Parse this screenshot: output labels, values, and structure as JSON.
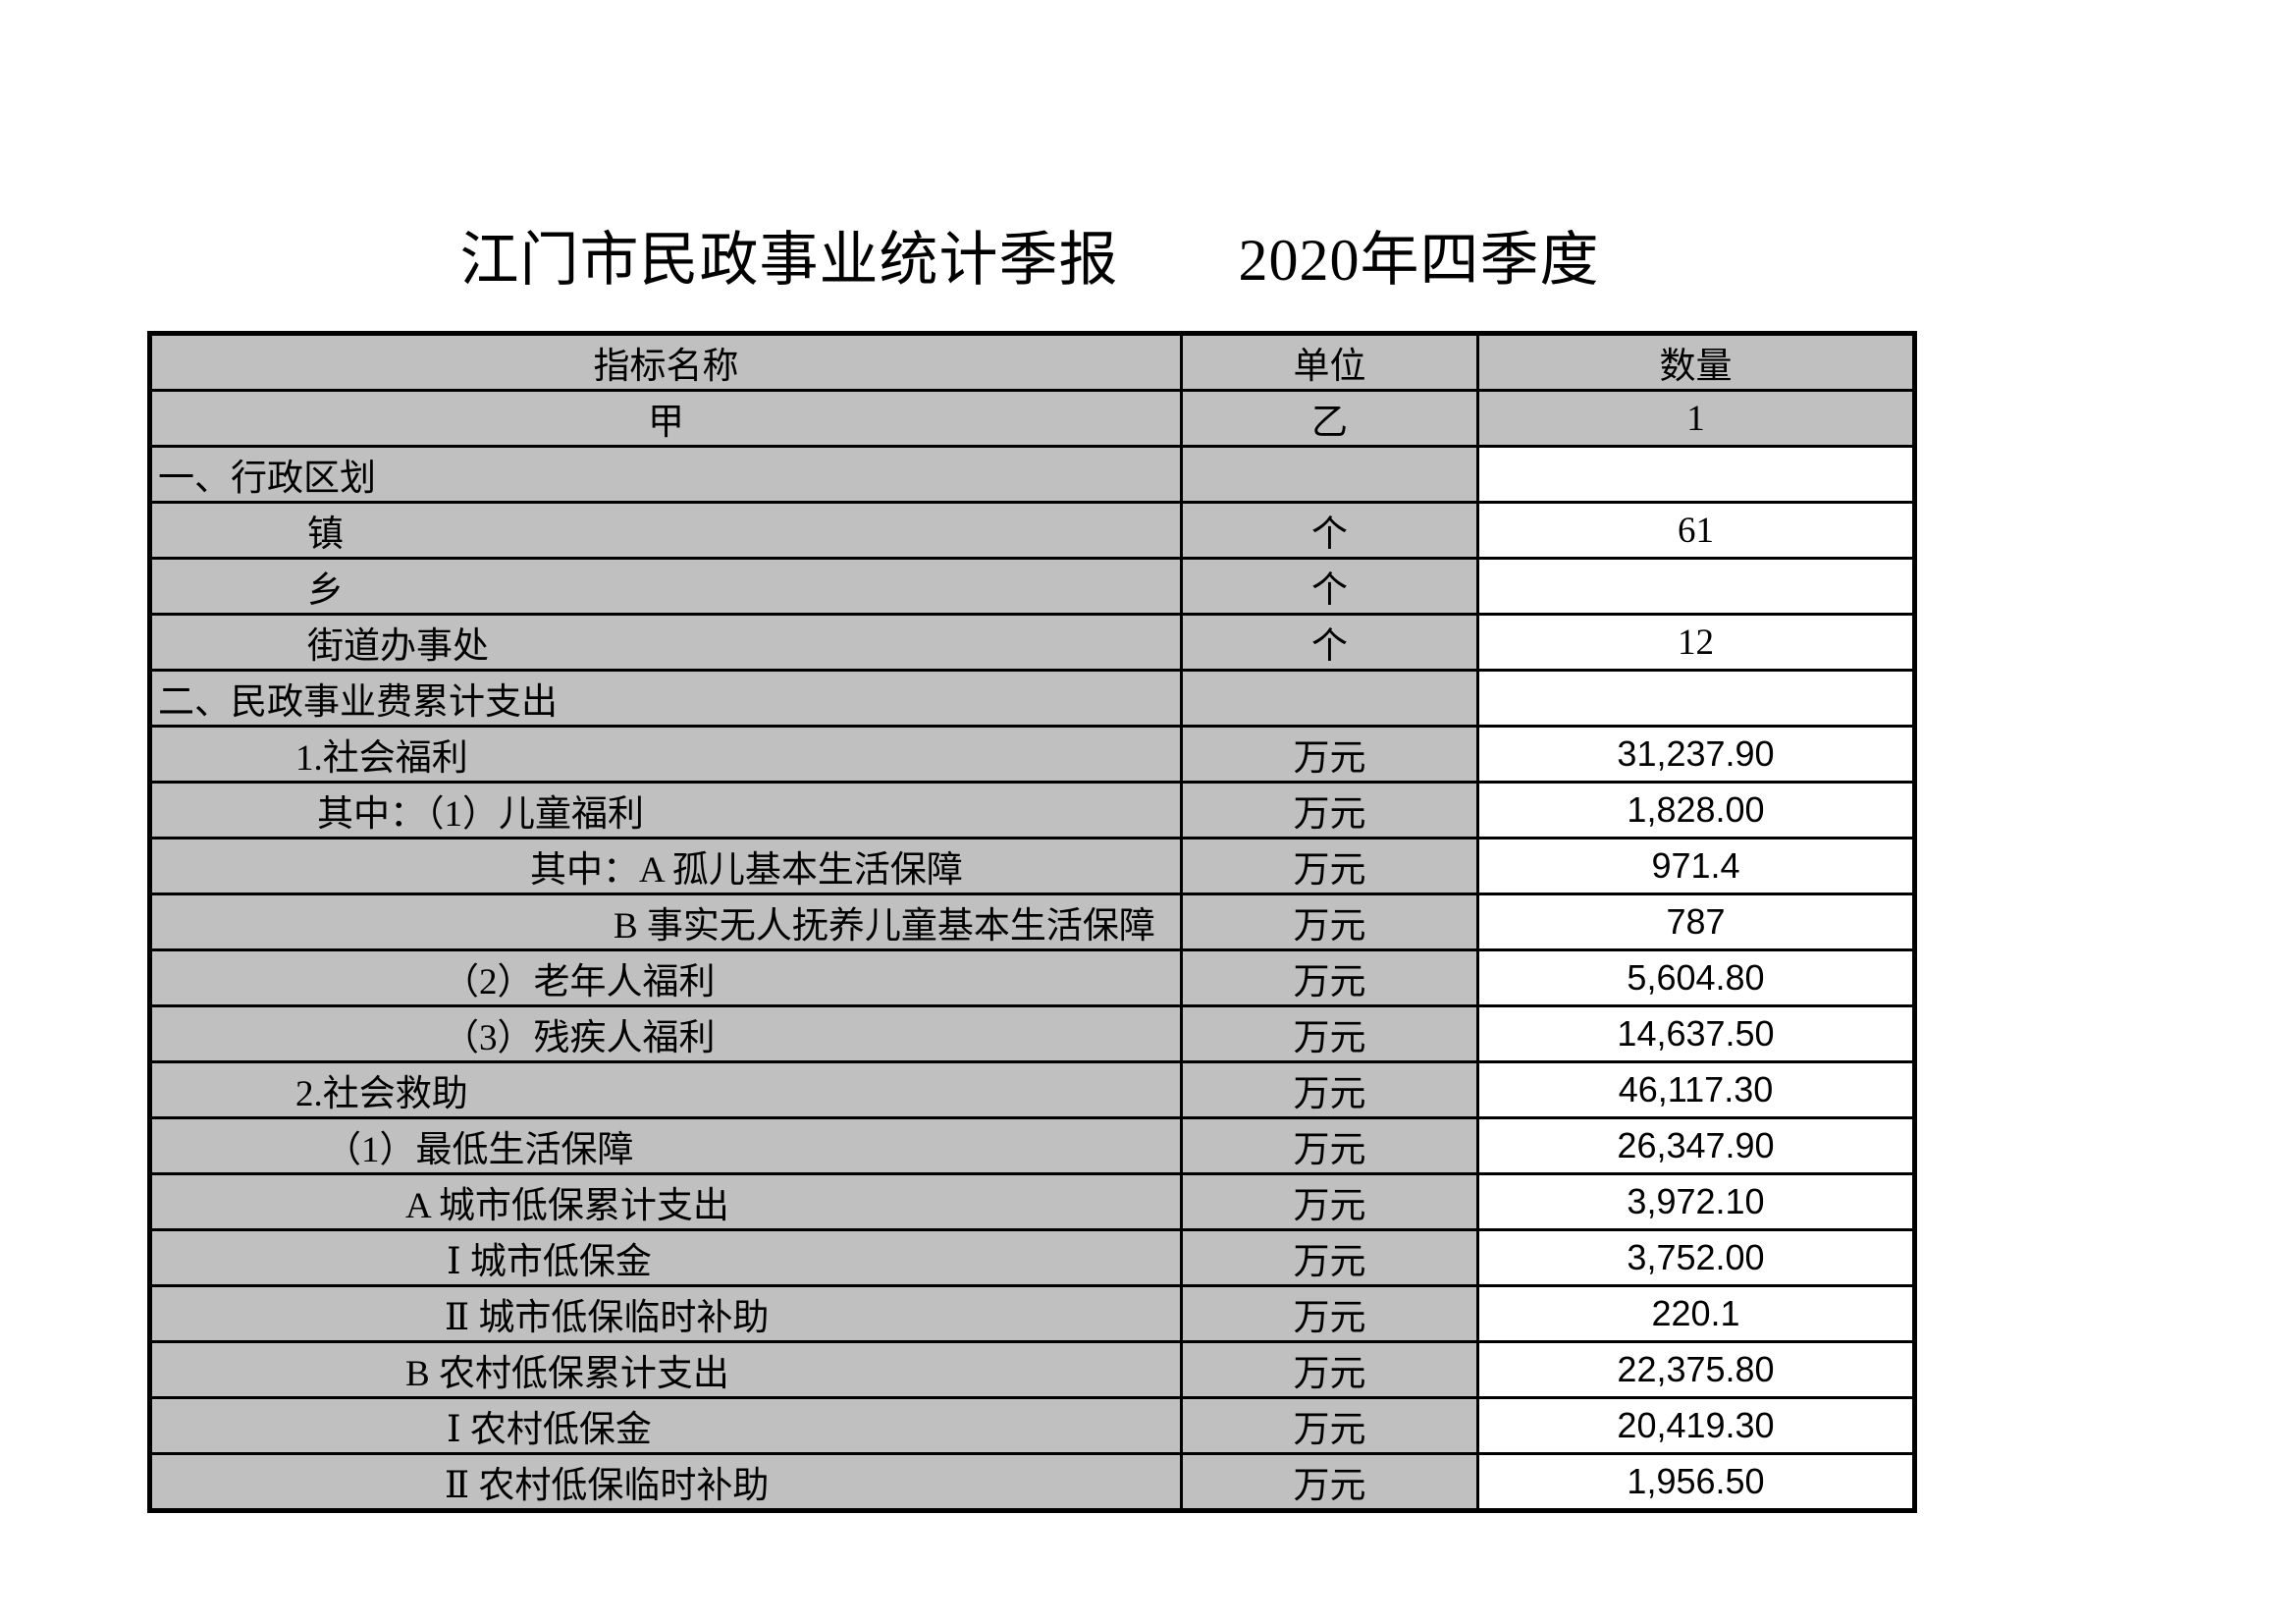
{
  "title": "江门市民政事业统计季报　　2020年四季度",
  "colors": {
    "cell_bg": "#c0c0c0",
    "border": "#000000",
    "page_bg": "#ffffff"
  },
  "table": {
    "columns": [
      {
        "label": "指标名称",
        "sub": "甲"
      },
      {
        "label": "单位",
        "sub": "乙"
      },
      {
        "label": "数量",
        "sub": "1"
      }
    ],
    "rows": [
      {
        "name": "一、行政区划",
        "unit": "",
        "value": "",
        "indent": 6,
        "value_font": "serif"
      },
      {
        "name": "镇",
        "unit": "个",
        "value": "61",
        "indent": 158,
        "value_font": "serif"
      },
      {
        "name": "乡",
        "unit": "个",
        "value": "",
        "indent": 158,
        "value_font": "serif"
      },
      {
        "name": "街道办事处",
        "unit": "个",
        "value": "12",
        "indent": 158,
        "value_font": "serif"
      },
      {
        "name": "二、民政事业费累计支出",
        "unit": "",
        "value": "",
        "indent": 6,
        "value_font": "serif"
      },
      {
        "name": "1.社会福利",
        "unit": "万元",
        "value": "31,237.90",
        "indent": 146,
        "value_font": "sans"
      },
      {
        "name": "其中：（1）儿童福利",
        "unit": "万元",
        "value": "1,828.00",
        "indent": 168,
        "value_font": "sans"
      },
      {
        "name": "其中：A 孤儿基本生活保障",
        "unit": "万元",
        "value": "971.4",
        "indent": 385,
        "value_font": "sans"
      },
      {
        "name": "B 事实无人抚养儿童基本生活保障",
        "unit": "万元",
        "value": "787",
        "indent": 470,
        "value_font": "sans"
      },
      {
        "name": "（2）老年人福利",
        "unit": "万元",
        "value": "5,604.80",
        "indent": 296,
        "value_font": "sans"
      },
      {
        "name": "（3）残疾人福利",
        "unit": "万元",
        "value": "14,637.50",
        "indent": 296,
        "value_font": "sans"
      },
      {
        "name": "2.社会救助",
        "unit": "万元",
        "value": "46,117.30",
        "indent": 146,
        "value_font": "sans"
      },
      {
        "name": "（1）最低生活保障",
        "unit": "万元",
        "value": "26,347.90",
        "indent": 176,
        "value_font": "sans"
      },
      {
        "name": "A 城市低保累计支出",
        "unit": "万元",
        "value": "3,972.10",
        "indent": 258,
        "value_font": "sans"
      },
      {
        "name": "Ⅰ 城市低保金",
        "unit": "万元",
        "value": "3,752.00",
        "indent": 300,
        "value_font": "sans"
      },
      {
        "name": "Ⅱ 城市低保临时补助",
        "unit": "万元",
        "value": "220.1",
        "indent": 298,
        "value_font": "sans"
      },
      {
        "name": "B 农村低保累计支出",
        "unit": "万元",
        "value": "22,375.80",
        "indent": 258,
        "value_font": "sans"
      },
      {
        "name": "Ⅰ 农村低保金",
        "unit": "万元",
        "value": "20,419.30",
        "indent": 300,
        "value_font": "sans"
      },
      {
        "name": "Ⅱ 农村低保临时补助",
        "unit": "万元",
        "value": "1,956.50",
        "indent": 298,
        "value_font": "sans"
      }
    ]
  }
}
